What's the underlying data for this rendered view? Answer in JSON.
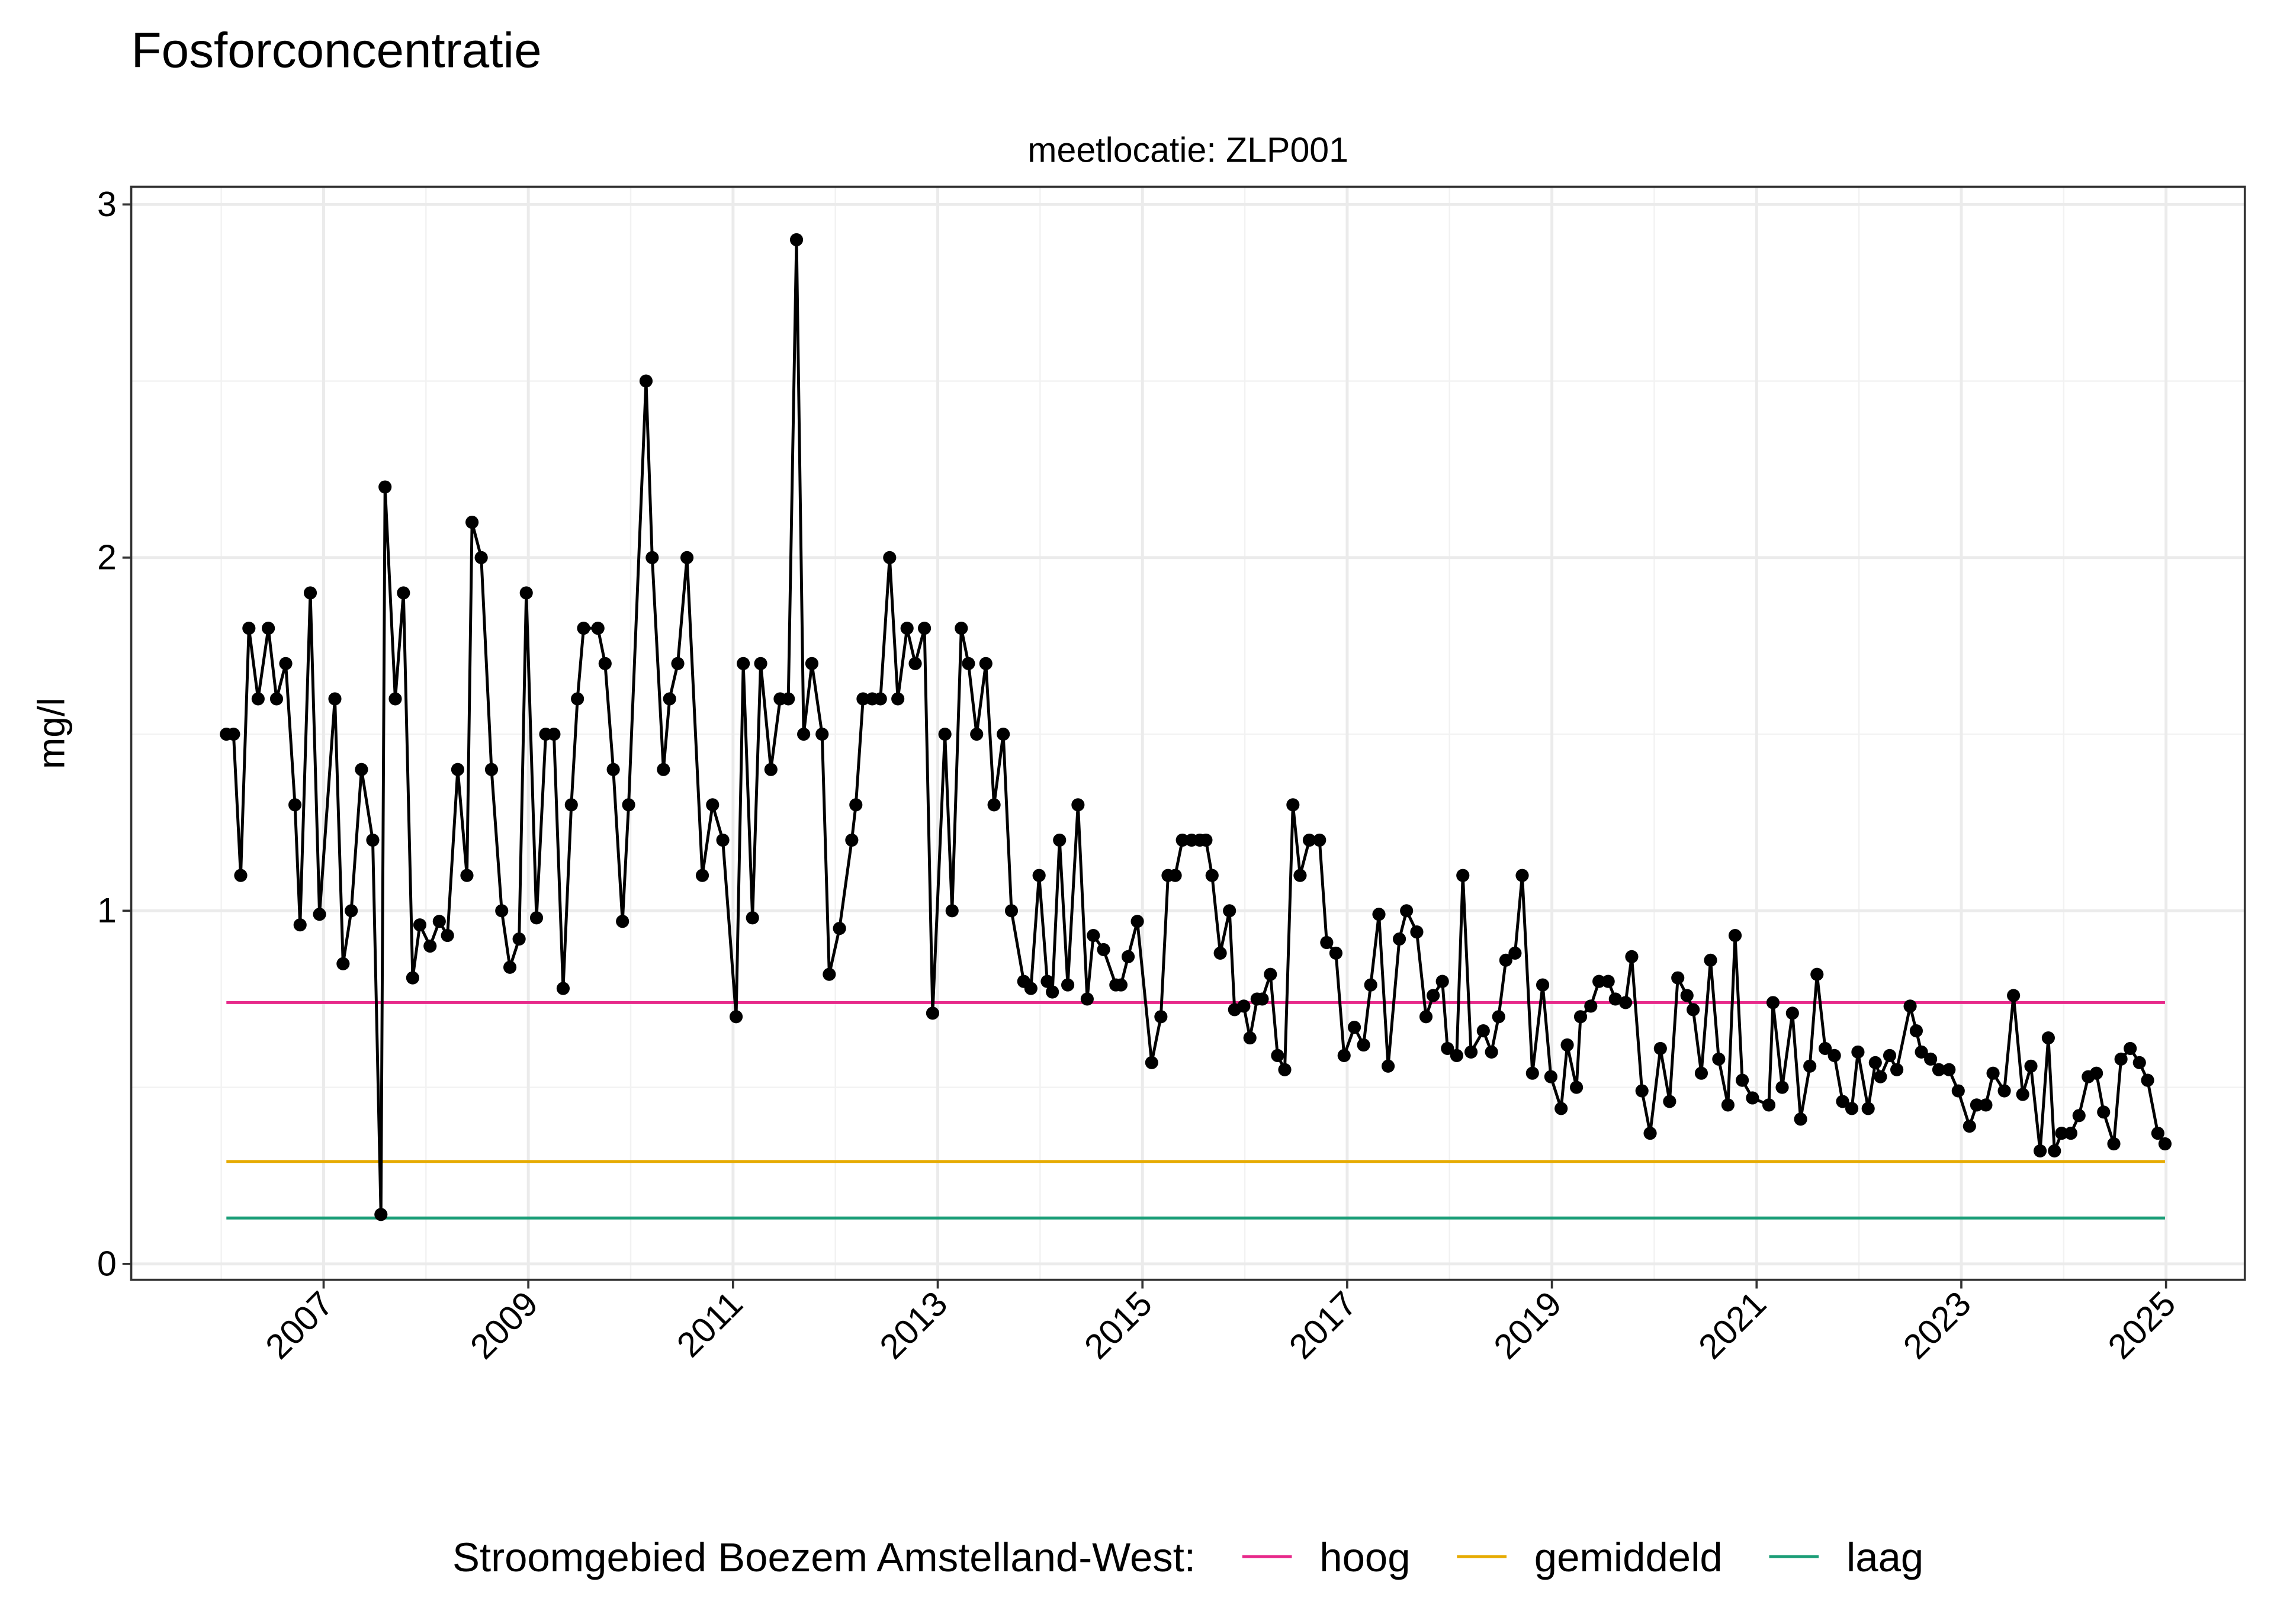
{
  "chart_data": {
    "type": "line",
    "title": "Fosforconcentratie",
    "subtitle": "meetlocatie: ZLP001",
    "ylabel": "mg/l",
    "legend_title": "Stroomgebied Boezem Amstelland-West:",
    "legend_position": "bottom",
    "grid": true,
    "xlim": [
      2005.12,
      2025.77
    ],
    "xticks": [
      2007,
      2009,
      2011,
      2013,
      2015,
      2017,
      2019,
      2021,
      2023,
      2025
    ],
    "xminorticks": [
      2006,
      2008,
      2010,
      2012,
      2014,
      2016,
      2018,
      2020,
      2022,
      2024
    ],
    "ylim": [
      -0.045,
      3.05
    ],
    "yticks": [
      0,
      1,
      2,
      3
    ],
    "yminorticks": [
      0.5,
      1.5,
      2.5
    ],
    "x": [
      2006.05,
      2006.12,
      2006.19,
      2006.27,
      2006.36,
      2006.46,
      2006.54,
      2006.63,
      2006.72,
      2006.77,
      2006.87,
      2006.96,
      2007.11,
      2007.19,
      2007.27,
      2007.37,
      2007.48,
      2007.56,
      2007.6,
      2007.7,
      2007.78,
      2007.87,
      2007.94,
      2008.04,
      2008.13,
      2008.21,
      2008.31,
      2008.4,
      2008.45,
      2008.54,
      2008.64,
      2008.74,
      2008.82,
      2008.91,
      2008.98,
      2009.08,
      2009.17,
      2009.25,
      2009.34,
      2009.42,
      2009.48,
      2009.54,
      2009.68,
      2009.75,
      2009.83,
      2009.92,
      2009.98,
      2010.15,
      2010.21,
      2010.32,
      2010.38,
      2010.46,
      2010.55,
      2010.7,
      2010.8,
      2010.9,
      2011.03,
      2011.1,
      2011.19,
      2011.27,
      2011.37,
      2011.46,
      2011.54,
      2011.62,
      2011.69,
      2011.77,
      2011.87,
      2011.94,
      2012.04,
      2012.16,
      2012.2,
      2012.27,
      2012.36,
      2012.44,
      2012.53,
      2012.61,
      2012.7,
      2012.78,
      2012.87,
      2012.95,
      2013.07,
      2013.14,
      2013.23,
      2013.3,
      2013.38,
      2013.47,
      2013.55,
      2013.64,
      2013.72,
      2013.84,
      2013.91,
      2013.99,
      2014.07,
      2014.12,
      2014.19,
      2014.27,
      2014.37,
      2014.46,
      2014.52,
      2014.62,
      2014.74,
      2014.79,
      2014.86,
      2014.95,
      2015.09,
      2015.18,
      2015.25,
      2015.32,
      2015.39,
      2015.48,
      2015.56,
      2015.62,
      2015.68,
      2015.76,
      2015.85,
      2015.9,
      2015.99,
      2016.05,
      2016.12,
      2016.17,
      2016.25,
      2016.32,
      2016.39,
      2016.47,
      2016.54,
      2016.63,
      2016.73,
      2016.8,
      2016.89,
      2016.97,
      2017.07,
      2017.16,
      2017.23,
      2017.31,
      2017.4,
      2017.51,
      2017.58,
      2017.68,
      2017.77,
      2017.84,
      2017.93,
      2017.98,
      2018.07,
      2018.13,
      2018.21,
      2018.33,
      2018.41,
      2018.48,
      2018.55,
      2018.64,
      2018.71,
      2018.81,
      2018.91,
      2018.99,
      2019.09,
      2019.15,
      2019.24,
      2019.28,
      2019.38,
      2019.46,
      2019.55,
      2019.62,
      2019.72,
      2019.78,
      2019.88,
      2019.96,
      2020.06,
      2020.15,
      2020.23,
      2020.32,
      2020.38,
      2020.46,
      2020.55,
      2020.63,
      2020.72,
      2020.79,
      2020.86,
      2020.96,
      2021.12,
      2021.16,
      2021.25,
      2021.35,
      2021.43,
      2021.52,
      2021.59,
      2021.67,
      2021.76,
      2021.84,
      2021.93,
      2021.99,
      2022.09,
      2022.16,
      2022.21,
      2022.3,
      2022.37,
      2022.5,
      2022.56,
      2022.61,
      2022.7,
      2022.78,
      2022.88,
      2022.97,
      2023.08,
      2023.15,
      2023.24,
      2023.31,
      2023.42,
      2023.51,
      2023.6,
      2023.68,
      2023.77,
      2023.85,
      2023.91,
      2023.98,
      2024.07,
      2024.15,
      2024.24,
      2024.32,
      2024.39,
      2024.49,
      2024.56,
      2024.65,
      2024.74,
      2024.82,
      2024.92,
      2024.99
    ],
    "series": [
      {
        "color": "#000000",
        "values": [
          1.5,
          1.5,
          1.1,
          1.8,
          1.6,
          1.8,
          1.6,
          1.7,
          1.3,
          0.96,
          1.9,
          0.99,
          1.6,
          0.85,
          1.0,
          1.4,
          1.2,
          0.14,
          2.2,
          1.6,
          1.9,
          0.81,
          0.96,
          0.9,
          0.97,
          0.93,
          1.4,
          1.1,
          2.1,
          2.0,
          1.4,
          1.0,
          0.84,
          0.92,
          1.9,
          0.98,
          1.5,
          1.5,
          0.78,
          1.3,
          1.6,
          1.8,
          1.8,
          1.7,
          1.4,
          0.97,
          1.3,
          2.5,
          2.0,
          1.4,
          1.6,
          1.7,
          2.0,
          1.1,
          1.3,
          1.2,
          0.7,
          1.7,
          0.98,
          1.7,
          1.4,
          1.6,
          1.6,
          2.9,
          1.5,
          1.7,
          1.5,
          0.82,
          0.95,
          1.2,
          1.3,
          1.6,
          1.6,
          1.6,
          2.0,
          1.6,
          1.8,
          1.7,
          1.8,
          0.71,
          1.5,
          1.0,
          1.8,
          1.7,
          1.5,
          1.7,
          1.3,
          1.5,
          1.0,
          0.8,
          0.78,
          1.1,
          0.8,
          0.77,
          1.2,
          0.79,
          1.3,
          0.75,
          0.93,
          0.89,
          0.79,
          0.79,
          0.87,
          0.97,
          0.57,
          0.7,
          1.1,
          1.1,
          1.2,
          1.2,
          1.2,
          1.2,
          1.1,
          0.88,
          1.0,
          0.72,
          0.73,
          0.64,
          0.75,
          0.75,
          0.82,
          0.59,
          0.55,
          1.3,
          1.1,
          1.2,
          1.2,
          0.91,
          0.88,
          0.59,
          0.67,
          0.62,
          0.79,
          0.99,
          0.56,
          0.92,
          1.0,
          0.94,
          0.7,
          0.76,
          0.8,
          0.61,
          0.59,
          1.1,
          0.6,
          0.66,
          0.6,
          0.7,
          0.86,
          0.88,
          1.1,
          0.54,
          0.79,
          0.53,
          0.44,
          0.62,
          0.5,
          0.7,
          0.73,
          0.8,
          0.8,
          0.75,
          0.74,
          0.87,
          0.49,
          0.37,
          0.61,
          0.46,
          0.81,
          0.76,
          0.72,
          0.54,
          0.86,
          0.58,
          0.45,
          0.93,
          0.52,
          0.47,
          0.45,
          0.74,
          0.5,
          0.71,
          0.41,
          0.56,
          0.82,
          0.61,
          0.59,
          0.46,
          0.44,
          0.6,
          0.44,
          0.57,
          0.53,
          0.59,
          0.55,
          0.73,
          0.66,
          0.6,
          0.58,
          0.55,
          0.55,
          0.49,
          0.39,
          0.45,
          0.45,
          0.54,
          0.49,
          0.76,
          0.48,
          0.56,
          0.32,
          0.64,
          0.32,
          0.37,
          0.37,
          0.42,
          0.53,
          0.54,
          0.43,
          0.34,
          0.58,
          0.61,
          0.57,
          0.52,
          0.37,
          0.34
        ]
      }
    ],
    "reference_lines": [
      {
        "name": "hoog",
        "color": "#e7298a",
        "value": 0.74
      },
      {
        "name": "gemiddeld",
        "color": "#e6ab02",
        "value": 0.29
      },
      {
        "name": "laag",
        "color": "#1b9e77",
        "value": 0.13
      }
    ]
  }
}
